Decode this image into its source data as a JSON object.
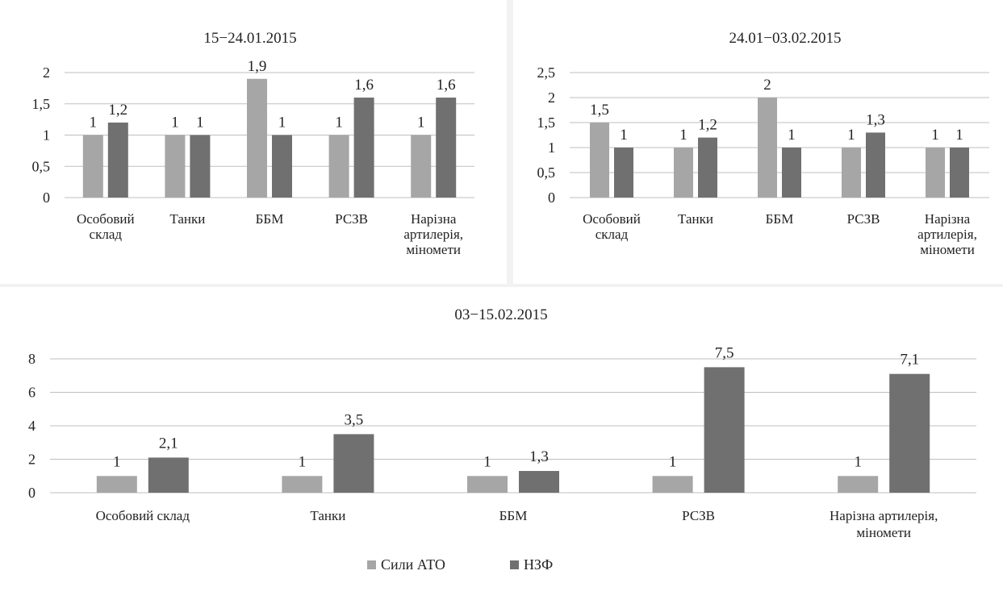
{
  "colors": {
    "ato": "#a6a6a6",
    "nzf": "#707070"
  },
  "legend": {
    "ato": "Сили АТО",
    "nzf": "НЗФ"
  },
  "chart_data": [
    {
      "type": "bar",
      "title": "15−24.01.2015",
      "categories": [
        "Особовий склад",
        "Танки",
        "ББМ",
        "РСЗВ",
        "Нарізна артилерія, міномети"
      ],
      "category_lines": [
        [
          "Особовий",
          "склад"
        ],
        [
          "Танки"
        ],
        [
          "ББМ"
        ],
        [
          "РСЗВ"
        ],
        [
          "Нарізна",
          "артилерія,",
          "міномети"
        ]
      ],
      "series": [
        {
          "name": "Сили АТО",
          "values": [
            1,
            1,
            1.9,
            1,
            1
          ],
          "labels": [
            "1",
            "1",
            "1,9",
            "1",
            "1"
          ]
        },
        {
          "name": "НЗФ",
          "values": [
            1.2,
            1,
            1,
            1.6,
            1.6
          ],
          "labels": [
            "1,2",
            "1",
            "1",
            "1,6",
            "1,6"
          ]
        }
      ],
      "ylim": [
        0,
        2
      ],
      "yticks": [
        0,
        0.5,
        1,
        1.5,
        2
      ],
      "ytick_labels": [
        "0",
        "0,5",
        "1",
        "1,5",
        "2"
      ],
      "grid": true,
      "xlabel": "",
      "ylabel": ""
    },
    {
      "type": "bar",
      "title": "24.01−03.02.2015",
      "categories": [
        "Особовий склад",
        "Танки",
        "ББМ",
        "РСЗВ",
        "Нарізна артилерія, міномети"
      ],
      "category_lines": [
        [
          "Особовий",
          "склад"
        ],
        [
          "Танки"
        ],
        [
          "ББМ"
        ],
        [
          "РСЗВ"
        ],
        [
          "Нарізна",
          "артилерія,",
          "міномети"
        ]
      ],
      "series": [
        {
          "name": "Сили АТО",
          "values": [
            1.5,
            1,
            2,
            1,
            1
          ],
          "labels": [
            "1,5",
            "1",
            "2",
            "1",
            "1"
          ]
        },
        {
          "name": "НЗФ",
          "values": [
            1,
            1.2,
            1,
            1.3,
            1
          ],
          "labels": [
            "1",
            "1,2",
            "1",
            "1,3",
            "1"
          ]
        }
      ],
      "ylim": [
        0,
        2.5
      ],
      "yticks": [
        0,
        0.5,
        1,
        1.5,
        2,
        2.5
      ],
      "ytick_labels": [
        "0",
        "0,5",
        "1",
        "1,5",
        "2",
        "2,5"
      ],
      "grid": true,
      "xlabel": "",
      "ylabel": ""
    },
    {
      "type": "bar",
      "title": "03−15.02.2015",
      "categories": [
        "Особовий склад",
        "Танки",
        "ББМ",
        "РСЗВ",
        "Нарізна артилерія, міномети"
      ],
      "category_lines": [
        [
          "Особовий склад"
        ],
        [
          "Танки"
        ],
        [
          "ББМ"
        ],
        [
          "РСЗВ"
        ],
        [
          "Нарізна артилерія,",
          "міномети"
        ]
      ],
      "series": [
        {
          "name": "Сили АТО",
          "values": [
            1,
            1,
            1,
            1,
            1
          ],
          "labels": [
            "1",
            "1",
            "1",
            "1",
            "1"
          ]
        },
        {
          "name": "НЗФ",
          "values": [
            2.1,
            3.5,
            1.3,
            7.5,
            7.1
          ],
          "labels": [
            "2,1",
            "3,5",
            "1,3",
            "7,5",
            "7,1"
          ]
        }
      ],
      "ylim": [
        0,
        8
      ],
      "yticks": [
        0,
        2,
        4,
        6,
        8
      ],
      "ytick_labels": [
        "0",
        "2",
        "4",
        "6",
        "8"
      ],
      "grid": true,
      "legend_position": "bottom",
      "xlabel": "",
      "ylabel": ""
    }
  ]
}
